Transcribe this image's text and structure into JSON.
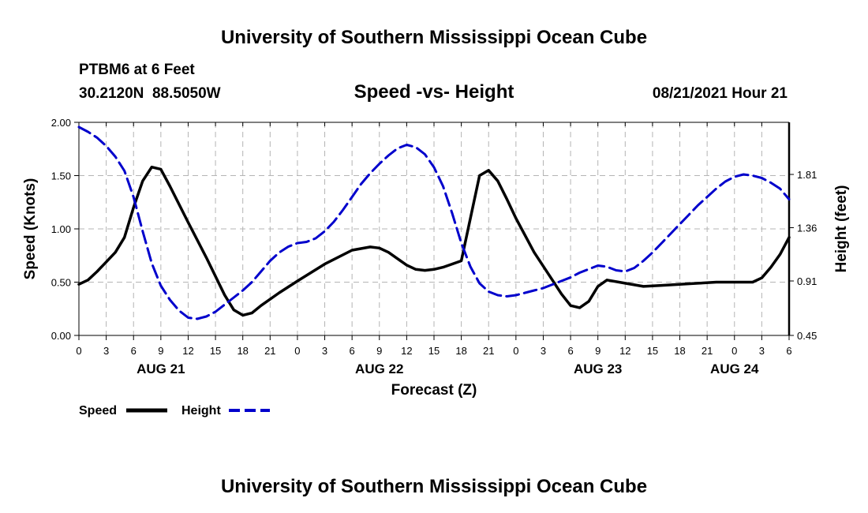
{
  "header": {
    "title_top": "University of Southern Mississippi Ocean Cube",
    "station": "PTBM6 at 6 Feet",
    "coords": "30.2120N  88.5050W",
    "chart_title": "Speed -vs- Height",
    "datetime": "08/21/2021 Hour 21",
    "title_bottom": "University of Southern Mississippi Ocean Cube"
  },
  "legend": {
    "speed_label": "Speed",
    "height_label": "Height"
  },
  "colors": {
    "speed": "#000000",
    "height": "#0000cc",
    "grid": "#b4b4b4"
  },
  "chart_data": {
    "type": "line",
    "title": "Speed -vs- Height",
    "xlabel": "Forecast (Z)",
    "ylabel": "Speed (Knots)",
    "y2label": "Height (feet)",
    "x_range_hours": [
      0,
      78
    ],
    "ylim": [
      0,
      2
    ],
    "y2lim": [
      0.45,
      2.25
    ],
    "x_tick_hours": [
      0,
      3,
      6,
      9,
      12,
      15,
      18,
      21,
      24,
      27,
      30,
      33,
      36,
      39,
      42,
      45,
      48,
      51,
      54,
      57,
      60,
      63,
      66,
      69,
      72,
      75,
      78
    ],
    "x_tick_labels": [
      "0",
      "3",
      "6",
      "9",
      "12",
      "15",
      "18",
      "21",
      "0",
      "3",
      "6",
      "9",
      "12",
      "15",
      "18",
      "21",
      "0",
      "3",
      "6",
      "9",
      "12",
      "15",
      "18",
      "21",
      "0",
      "3",
      "6"
    ],
    "date_labels": [
      {
        "hour": 9,
        "label": "AUG 21"
      },
      {
        "hour": 33,
        "label": "AUG 22"
      },
      {
        "hour": 57,
        "label": "AUG 23"
      },
      {
        "hour": 72,
        "label": "AUG 24"
      }
    ],
    "y_ticks": [
      0,
      0.5,
      1,
      1.5,
      2
    ],
    "y_tick_labels": [
      "0.00",
      "0.50",
      "1.00",
      "1.50",
      "2.00"
    ],
    "y2_ticks": [
      0.45,
      0.91,
      1.36,
      1.81
    ],
    "y2_tick_labels": [
      "0.45",
      "0.91",
      "1.36",
      "1.81"
    ],
    "series": [
      {
        "name": "Speed",
        "axis": "left",
        "style": "solid",
        "hours": [
          0,
          1,
          2,
          3,
          4,
          5,
          6,
          7,
          8,
          9,
          10,
          12,
          14,
          16,
          17,
          18,
          19,
          20,
          22,
          24,
          27,
          30,
          32,
          33,
          34,
          35,
          36,
          37,
          38,
          39,
          40,
          42,
          44,
          45,
          46,
          47,
          48,
          50,
          52,
          53,
          54,
          55,
          56,
          57,
          58,
          60,
          62,
          64,
          66,
          68,
          70,
          72,
          74,
          75,
          76,
          77,
          78
        ],
        "values": [
          0.48,
          0.52,
          0.6,
          0.69,
          0.78,
          0.92,
          1.2,
          1.45,
          1.58,
          1.56,
          1.4,
          1.06,
          0.73,
          0.38,
          0.24,
          0.19,
          0.21,
          0.28,
          0.4,
          0.51,
          0.67,
          0.8,
          0.83,
          0.82,
          0.78,
          0.72,
          0.66,
          0.62,
          0.61,
          0.62,
          0.64,
          0.7,
          1.5,
          1.55,
          1.45,
          1.28,
          1.1,
          0.78,
          0.52,
          0.39,
          0.28,
          0.26,
          0.32,
          0.46,
          0.52,
          0.49,
          0.46,
          0.47,
          0.48,
          0.49,
          0.5,
          0.5,
          0.5,
          0.54,
          0.64,
          0.76,
          0.92
        ]
      },
      {
        "name": "Height",
        "axis": "right",
        "style": "dashed",
        "hours": [
          0,
          1,
          2,
          3,
          4,
          5,
          6,
          7,
          8,
          9,
          10,
          11,
          12,
          13,
          14,
          15,
          16,
          17,
          18,
          19,
          20,
          21,
          22,
          23,
          24,
          25,
          26,
          27,
          28,
          29,
          30,
          31,
          32,
          33,
          34,
          35,
          36,
          37,
          38,
          39,
          40,
          41,
          42,
          43,
          44,
          45,
          46,
          47,
          48,
          49,
          50,
          51,
          52,
          53,
          54,
          55,
          56,
          57,
          58,
          59,
          60,
          61,
          62,
          63,
          64,
          65,
          66,
          67,
          68,
          69,
          70,
          71,
          72,
          73,
          74,
          75,
          76,
          77,
          78
        ],
        "values": [
          2.21,
          2.17,
          2.12,
          2.05,
          1.96,
          1.84,
          1.62,
          1.33,
          1.06,
          0.87,
          0.75,
          0.66,
          0.6,
          0.59,
          0.61,
          0.65,
          0.71,
          0.77,
          0.83,
          0.9,
          0.99,
          1.08,
          1.15,
          1.2,
          1.23,
          1.24,
          1.27,
          1.33,
          1.41,
          1.51,
          1.62,
          1.73,
          1.82,
          1.9,
          1.97,
          2.03,
          2.06,
          2.04,
          1.98,
          1.87,
          1.71,
          1.48,
          1.23,
          1.03,
          0.89,
          0.82,
          0.79,
          0.78,
          0.79,
          0.81,
          0.83,
          0.85,
          0.88,
          0.91,
          0.94,
          0.98,
          1.01,
          1.04,
          1.03,
          1.0,
          0.99,
          1.02,
          1.08,
          1.15,
          1.23,
          1.31,
          1.39,
          1.47,
          1.55,
          1.62,
          1.69,
          1.75,
          1.79,
          1.81,
          1.8,
          1.78,
          1.74,
          1.69,
          1.6
        ]
      }
    ]
  }
}
